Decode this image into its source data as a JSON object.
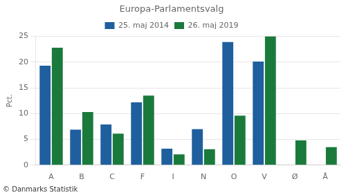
{
  "chart_data": {
    "type": "bar",
    "title": "Europa-Parlamentsvalg",
    "categories": [
      "A",
      "B",
      "C",
      "F",
      "I",
      "N",
      "O",
      "V",
      "Ø",
      "Å"
    ],
    "series": [
      {
        "name": "25. maj 2014",
        "color": "#1f5f9e",
        "values": [
          19.3,
          6.9,
          7.9,
          12.2,
          3.2,
          7.0,
          23.9,
          20.1,
          0.0,
          0.0
        ]
      },
      {
        "name": "26. maj 2019",
        "color": "#1a7a3c",
        "values": [
          22.8,
          10.3,
          6.1,
          13.5,
          2.1,
          3.1,
          9.6,
          25.0,
          4.8,
          3.5
        ]
      }
    ],
    "ylabel": "Pct.",
    "annotations": [
      "© Danmarks Statistik"
    ],
    "ylim": [
      0,
      25
    ],
    "yticks": [
      0,
      5,
      10,
      15,
      20,
      25
    ],
    "grid": true,
    "legend": "top"
  }
}
